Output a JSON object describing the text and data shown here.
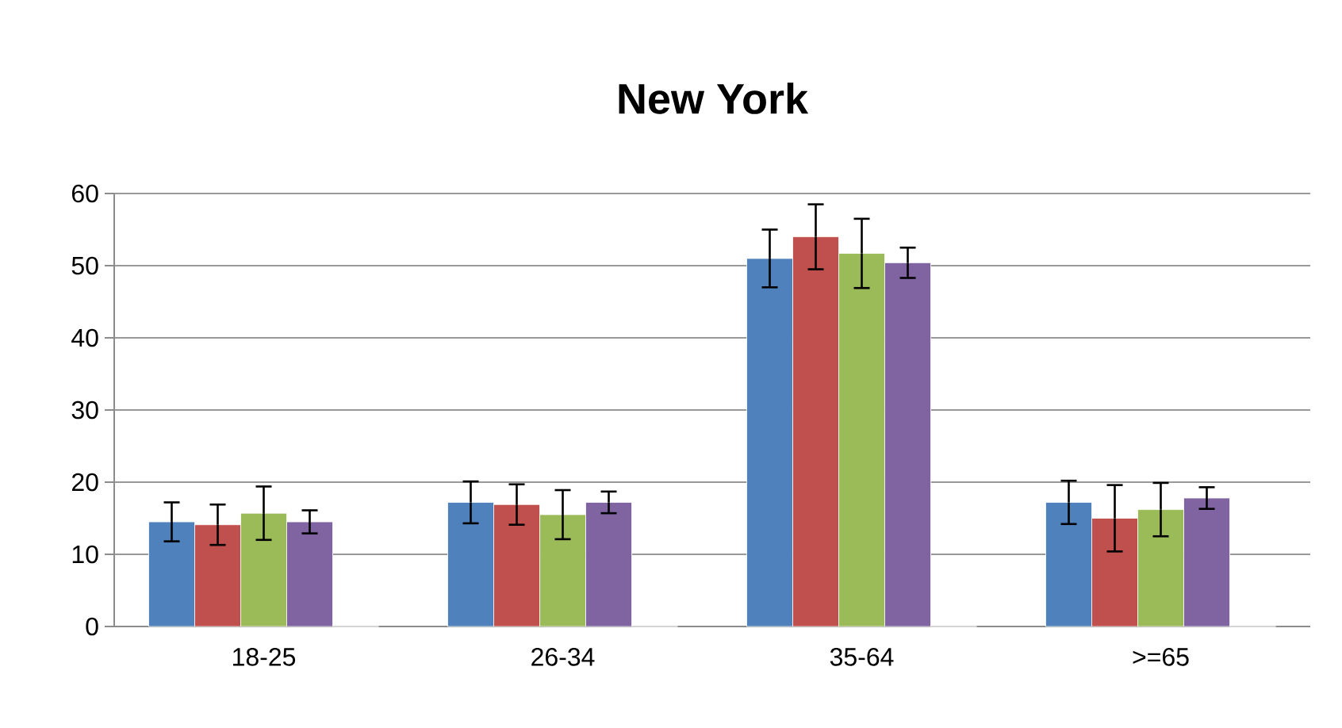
{
  "chart_data": {
    "type": "bar",
    "title": "New York",
    "categories": [
      "18-25",
      "26-34",
      "35-64",
      ">=65"
    ],
    "series": [
      {
        "color": "#4f81bd",
        "values": [
          14.5,
          17.2,
          51.0,
          17.2
        ],
        "errors": [
          2.7,
          2.9,
          4.0,
          3.0
        ]
      },
      {
        "color": "#c0504d",
        "values": [
          14.1,
          16.9,
          54.0,
          15.0
        ],
        "errors": [
          2.8,
          2.8,
          4.5,
          4.6
        ]
      },
      {
        "color": "#9bbb59",
        "values": [
          15.7,
          15.5,
          51.7,
          16.2
        ],
        "errors": [
          3.7,
          3.4,
          4.8,
          3.7
        ]
      },
      {
        "color": "#8064a2",
        "values": [
          14.5,
          17.2,
          50.4,
          17.8
        ],
        "errors": [
          1.6,
          1.5,
          2.1,
          1.5
        ]
      },
      {
        "color": "#a6a6a6",
        "values": [
          0,
          0,
          0,
          0
        ]
      }
    ],
    "ylim": [
      0,
      60
    ],
    "yticks": [
      0,
      10,
      20,
      30,
      40,
      50,
      60
    ],
    "grid": "y"
  }
}
